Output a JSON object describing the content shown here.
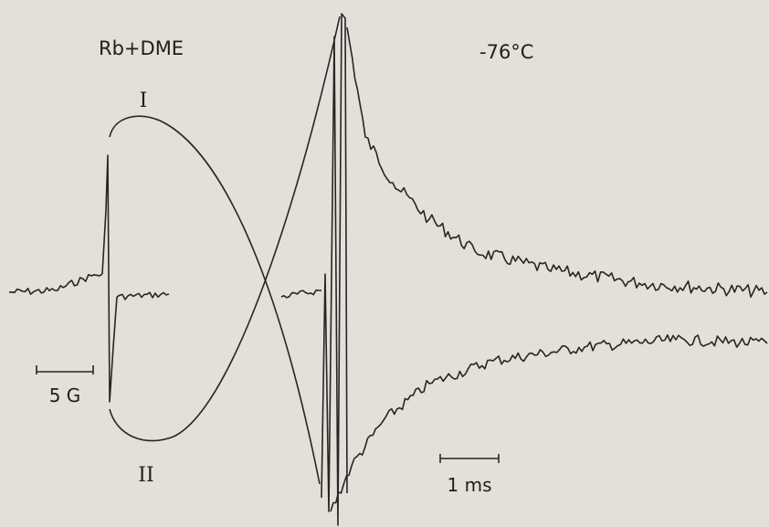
{
  "labels": {
    "sample": "Rb+DME",
    "temperature": "-76°C",
    "trace_upper": "I",
    "trace_lower": "II",
    "field_scale": "5 G",
    "time_scale": "1 ms"
  }
}
